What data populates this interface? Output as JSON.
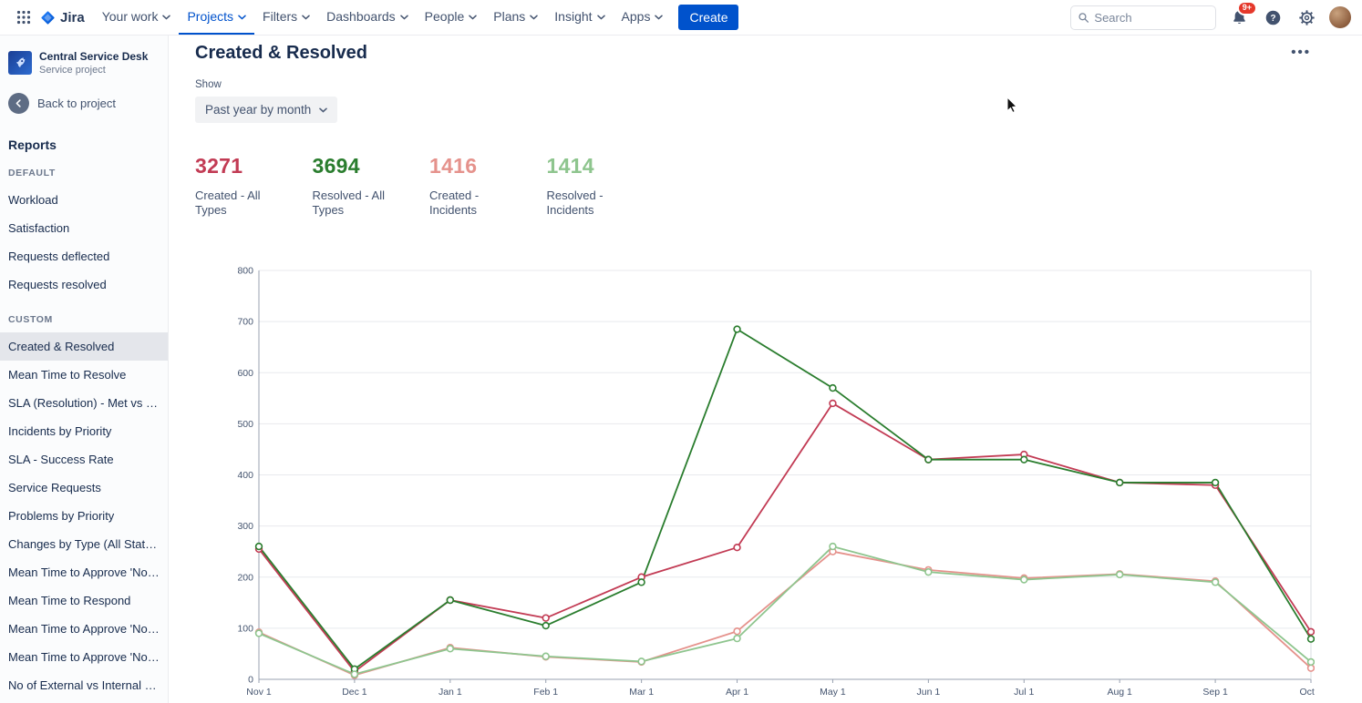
{
  "brand": {
    "accent_color": "#0052CC"
  },
  "nav": {
    "logo_text": "Jira",
    "items": [
      {
        "label": "Your work",
        "active": false
      },
      {
        "label": "Projects",
        "active": true
      },
      {
        "label": "Filters",
        "active": false
      },
      {
        "label": "Dashboards",
        "active": false
      },
      {
        "label": "People",
        "active": false
      },
      {
        "label": "Plans",
        "active": false
      },
      {
        "label": "Insight",
        "active": false
      },
      {
        "label": "Apps",
        "active": false
      }
    ],
    "create_label": "Create",
    "search_placeholder": "Search",
    "notification_badge": "9+"
  },
  "sidebar": {
    "project_name": "Central Service Desk",
    "project_type": "Service project",
    "back_label": "Back to project",
    "section_title": "Reports",
    "selected_item": "Created & Resolved",
    "groups": [
      {
        "label": "DEFAULT",
        "items": [
          "Workload",
          "Satisfaction",
          "Requests deflected",
          "Requests resolved"
        ]
      },
      {
        "label": "CUSTOM",
        "items": [
          "Created & Resolved",
          "Mean Time to Resolve",
          "SLA (Resolution) - Met vs Bre...",
          "Incidents by Priority",
          "SLA - Success Rate",
          "Service Requests",
          "Problems by Priority",
          "Changes by Type (All Statuses)",
          "Mean Time to Approve 'Norm...",
          "Mean Time to Respond",
          "Mean Time to Approve 'Norm...",
          "Mean Time to Approve 'Norm...",
          "No of External vs Internal Ser..."
        ]
      }
    ]
  },
  "main": {
    "title": "Created & Resolved",
    "more_options": "•••",
    "show_label": "Show",
    "period_selector": "Past year by month",
    "stats": [
      {
        "value": "3271",
        "label": "Created - All Types",
        "color": "#C23B54"
      },
      {
        "value": "3694",
        "label": "Resolved - All Types",
        "color": "#2A7D2E"
      },
      {
        "value": "1416",
        "label": "Created - Incidents",
        "color": "#E5928C"
      },
      {
        "value": "1414",
        "label": "Resolved - Incidents",
        "color": "#8EC58E"
      }
    ]
  },
  "chart_data": {
    "type": "line",
    "title": "Created & Resolved - Past year by month",
    "x": [
      "Nov 1",
      "Dec 1",
      "Jan 1",
      "Feb 1",
      "Mar 1",
      "Apr 1",
      "May 1",
      "Jun 1",
      "Jul 1",
      "Aug 1",
      "Sep 1",
      "Oct 1"
    ],
    "xlabel": "",
    "ylabel": "",
    "ylim": [
      0,
      800
    ],
    "ytick_step": 100,
    "grid": true,
    "legend_position": "none",
    "marker": "open-circle",
    "series": [
      {
        "name": "Created - All Types",
        "color": "#C23B54",
        "values": [
          255,
          15,
          155,
          120,
          200,
          258,
          540,
          430,
          440,
          385,
          380,
          93
        ]
      },
      {
        "name": "Resolved - All Types",
        "color": "#2A7D2E",
        "values": [
          260,
          20,
          155,
          105,
          190,
          685,
          570,
          430,
          430,
          385,
          385,
          79
        ]
      },
      {
        "name": "Created - Incidents",
        "color": "#E5928C",
        "values": [
          92,
          8,
          62,
          44,
          34,
          94,
          250,
          214,
          198,
          206,
          192,
          22
        ]
      },
      {
        "name": "Resolved - Incidents",
        "color": "#8EC58E",
        "values": [
          90,
          10,
          60,
          45,
          35,
          80,
          260,
          210,
          195,
          205,
          190,
          34
        ]
      }
    ]
  }
}
